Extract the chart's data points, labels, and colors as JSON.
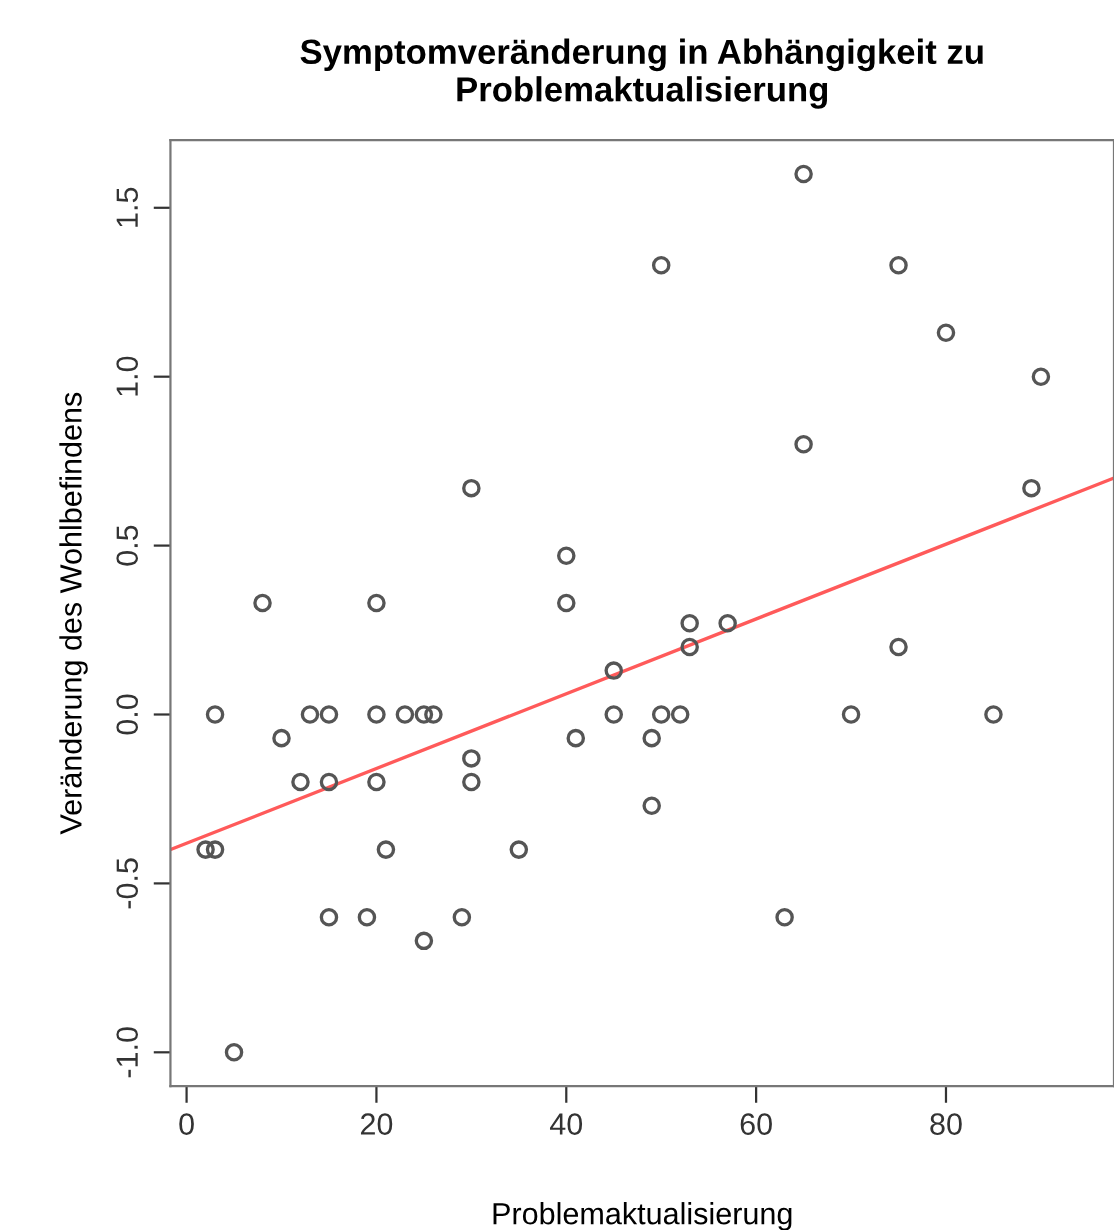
{
  "chart_data": {
    "type": "scatter",
    "title": "Symptomveränderung in Abhängigkeit zu\nProblemaktualisierung",
    "xlabel": "Problemaktualisierung",
    "ylabel": "Veränderung des Wohlbefindens",
    "xlim": [
      -1.7,
      97.7
    ],
    "ylim": [
      -1.1,
      1.7
    ],
    "xticks": [
      0,
      20,
      40,
      60,
      80
    ],
    "yticks": [
      {
        "value": -1.0,
        "label": "-1.0"
      },
      {
        "value": -0.5,
        "label": "-0.5"
      },
      {
        "value": 0.0,
        "label": "0.0"
      },
      {
        "value": 0.5,
        "label": "0.5"
      },
      {
        "value": 1.0,
        "label": "1.0"
      },
      {
        "value": 1.5,
        "label": "1.5"
      }
    ],
    "grid": false,
    "series": [
      {
        "marker": "circle",
        "color": "#555555",
        "x": [
          2,
          3,
          3,
          5,
          8,
          10,
          12,
          13,
          15,
          15,
          15,
          19,
          20,
          20,
          20,
          21,
          23,
          25,
          26,
          25,
          29,
          30,
          30,
          30,
          35,
          40,
          40,
          41,
          45,
          45,
          49,
          49,
          50,
          50,
          52,
          53,
          53,
          57,
          63,
          65,
          65,
          70,
          75,
          75,
          80,
          85,
          89,
          90
        ],
        "values": [
          -0.4,
          -0.4,
          0,
          -1,
          0.33,
          -0.07,
          -0.2,
          0,
          0,
          -0.2,
          -0.6,
          -0.6,
          0.33,
          0,
          -0.2,
          -0.4,
          0,
          0,
          0,
          -0.67,
          -0.6,
          0.67,
          -0.13,
          -0.2,
          -0.4,
          0.47,
          0.33,
          -0.07,
          0.13,
          0,
          -0.07,
          -0.27,
          1.33,
          0,
          0,
          0.27,
          0.2,
          0.27,
          -0.6,
          1.6,
          0.8,
          0,
          1.33,
          0.2,
          1.13,
          0,
          0.67,
          1.0
        ]
      },
      {
        "type": "line",
        "marker": "none",
        "color": "#ff5a5a",
        "x": [
          -1.7,
          97.7
        ],
        "values": [
          -0.4,
          0.7
        ]
      }
    ]
  }
}
